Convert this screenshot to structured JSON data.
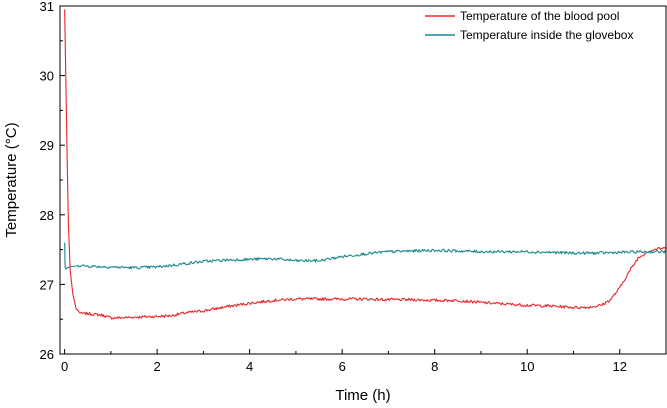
{
  "chart_data": {
    "type": "line",
    "xlabel": "Time (h)",
    "ylabel": "Temperature (°C)",
    "xlim": [
      -0.1,
      13.0
    ],
    "ylim": [
      26,
      31
    ],
    "xticks": [
      0,
      2,
      4,
      6,
      8,
      10,
      12
    ],
    "yticks": [
      26,
      27,
      28,
      29,
      30,
      31
    ],
    "legend_position": "top-right",
    "grid": false,
    "series": [
      {
        "name": "Temperature of the blood pool",
        "color": "#e8262a",
        "x": [
          0.0,
          0.02,
          0.05,
          0.08,
          0.12,
          0.18,
          0.25,
          0.35,
          0.5,
          0.8,
          1.0,
          1.2,
          1.5,
          2.0,
          2.3,
          2.6,
          3.0,
          3.5,
          4.0,
          4.5,
          5.0,
          5.5,
          6.0,
          6.5,
          7.0,
          7.5,
          8.0,
          8.5,
          9.0,
          9.5,
          10.0,
          10.5,
          11.0,
          11.3,
          11.6,
          11.8,
          12.0,
          12.2,
          12.4,
          12.6,
          12.8,
          13.0
        ],
        "y": [
          30.95,
          30.2,
          29.0,
          27.9,
          27.2,
          26.85,
          26.65,
          26.58,
          26.58,
          26.56,
          26.52,
          26.52,
          26.53,
          26.54,
          26.55,
          26.59,
          26.62,
          26.68,
          26.73,
          26.77,
          26.79,
          26.79,
          26.79,
          26.79,
          26.78,
          26.78,
          26.77,
          26.77,
          26.74,
          26.72,
          26.7,
          26.69,
          26.67,
          26.67,
          26.7,
          26.78,
          26.95,
          27.18,
          27.38,
          27.47,
          27.51,
          27.52
        ]
      },
      {
        "name": "Temperature inside the glovebox",
        "color": "#1a8a8a",
        "x": [
          0.0,
          0.01,
          0.03,
          0.06,
          0.1,
          0.3,
          0.6,
          1.0,
          1.5,
          2.0,
          2.5,
          3.0,
          3.5,
          4.0,
          4.5,
          5.0,
          5.5,
          6.0,
          6.5,
          7.0,
          7.5,
          8.0,
          8.5,
          9.0,
          9.5,
          10.0,
          10.5,
          11.0,
          11.5,
          12.0,
          12.5,
          13.0
        ],
        "y": [
          27.6,
          27.25,
          27.22,
          27.24,
          27.25,
          27.27,
          27.26,
          27.25,
          27.24,
          27.25,
          27.29,
          27.33,
          27.35,
          27.36,
          27.37,
          27.34,
          27.34,
          27.4,
          27.44,
          27.47,
          27.48,
          27.49,
          27.48,
          27.47,
          27.47,
          27.47,
          27.46,
          27.45,
          27.45,
          27.46,
          27.47,
          27.47
        ]
      }
    ]
  }
}
